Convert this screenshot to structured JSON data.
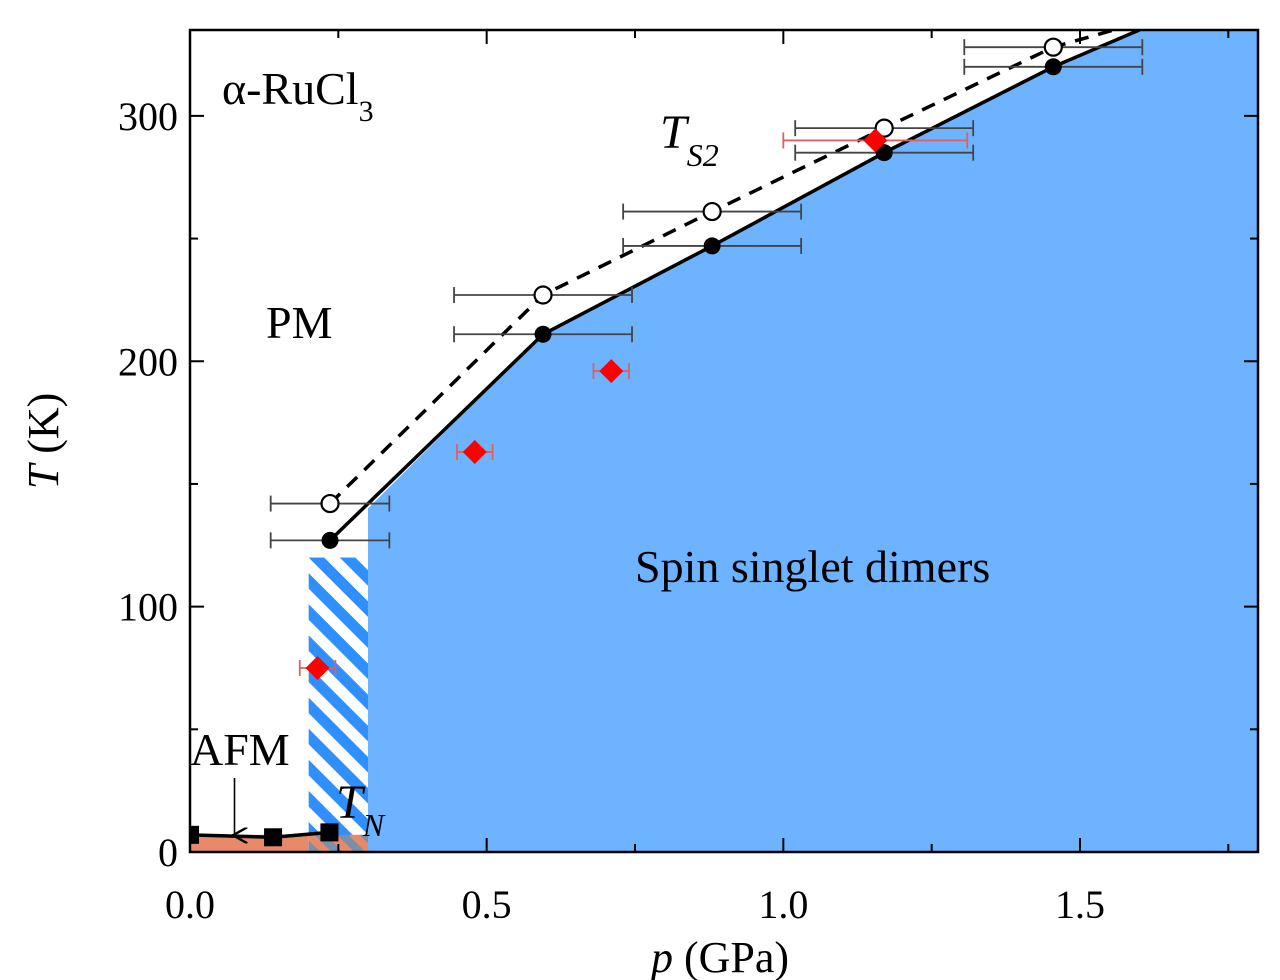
{
  "chart_data": {
    "type": "scatter",
    "xlabel_var": "p",
    "xlabel_unit": "(GPa)",
    "ylabel_var": "T",
    "ylabel_unit": "(K)",
    "xlim": [
      0,
      1.8
    ],
    "ylim": [
      0,
      335
    ],
    "xticks": [
      0.0,
      0.5,
      1.0,
      1.5
    ],
    "xtick_labels": [
      "0.0",
      "0.5",
      "1.0",
      "1.5"
    ],
    "yticks": [
      0,
      100,
      200,
      300
    ],
    "ytick_labels": [
      "0",
      "100",
      "200",
      "300"
    ],
    "grid": false,
    "annotations": {
      "compound_prefix": "α-RuCl",
      "compound_sub": "3",
      "pm": "PM",
      "spin_singlet": "Spin singlet dimers",
      "afm": "AFM",
      "ts2_main": "T",
      "ts2_sub": "S2",
      "tn_main": "T",
      "tn_sub": "N"
    },
    "colors": {
      "singlet": "#6db3ff",
      "afm": "#e8896a",
      "diamond": "#ff0000",
      "errorbar_red": "#e06060",
      "errorbar_black": "#444444"
    },
    "series": [
      {
        "marker": "open-circle",
        "line": "dashed",
        "points": [
          {
            "x": 0.236,
            "y": 142,
            "xerr_lo": 0.1,
            "xerr_hi": 0.1
          },
          {
            "x": 0.595,
            "y": 227,
            "xerr_lo": 0.15,
            "xerr_hi": 0.15
          },
          {
            "x": 0.88,
            "y": 261,
            "xerr_lo": 0.15,
            "xerr_hi": 0.15
          },
          {
            "x": 1.17,
            "y": 295,
            "xerr_lo": 0.15,
            "xerr_hi": 0.15
          },
          {
            "x": 1.455,
            "y": 328,
            "xerr_lo": 0.15,
            "xerr_hi": 0.15
          }
        ],
        "line_end": {
          "x": 1.6,
          "y": 338
        }
      },
      {
        "marker": "filled-circle",
        "line": "solid",
        "points": [
          {
            "x": 0.236,
            "y": 127,
            "xerr_lo": 0.1,
            "xerr_hi": 0.1
          },
          {
            "x": 0.595,
            "y": 211,
            "xerr_lo": 0.15,
            "xerr_hi": 0.15
          },
          {
            "x": 0.88,
            "y": 247,
            "xerr_lo": 0.15,
            "xerr_hi": 0.15
          },
          {
            "x": 1.17,
            "y": 285,
            "xerr_lo": 0.15,
            "xerr_hi": 0.15
          },
          {
            "x": 1.455,
            "y": 320,
            "xerr_lo": 0.15,
            "xerr_hi": 0.15
          }
        ],
        "line_end": {
          "x": 1.6,
          "y": 335
        }
      },
      {
        "marker": "red-diamond",
        "line": "none",
        "points": [
          {
            "x": 0.215,
            "y": 75,
            "xerr_lo": 0.03,
            "xerr_hi": 0.03
          },
          {
            "x": 0.48,
            "y": 163,
            "xerr_lo": 0.03,
            "xerr_hi": 0.03
          },
          {
            "x": 0.71,
            "y": 196,
            "xerr_lo": 0.03,
            "xerr_hi": 0.03
          },
          {
            "x": 1.155,
            "y": 290,
            "xerr_lo": 0.155,
            "xerr_hi": 0.155
          }
        ]
      },
      {
        "marker": "filled-square",
        "line": "solid",
        "points": [
          {
            "x": 0.0,
            "y": 7
          },
          {
            "x": 0.14,
            "y": 6
          },
          {
            "x": 0.235,
            "y": 8
          }
        ]
      }
    ],
    "regions": {
      "singlet_boundary": [
        [
          0.3,
          140
        ],
        [
          0.3,
          0
        ],
        [
          1.8,
          0
        ],
        [
          1.8,
          335
        ],
        [
          1.6,
          335
        ],
        [
          1.455,
          320
        ],
        [
          1.17,
          285
        ],
        [
          0.88,
          247
        ],
        [
          0.595,
          211
        ],
        [
          0.3,
          140
        ]
      ],
      "hatch_band": {
        "x0": 0.2,
        "x1": 0.3,
        "y0": 0,
        "y1": 120
      },
      "afm_band": {
        "x0": 0.0,
        "x1": 0.3,
        "y0": 0,
        "y1": 7
      },
      "afm_arrow": {
        "x": 0.075,
        "y_from": 28,
        "y_to": 6
      }
    }
  }
}
